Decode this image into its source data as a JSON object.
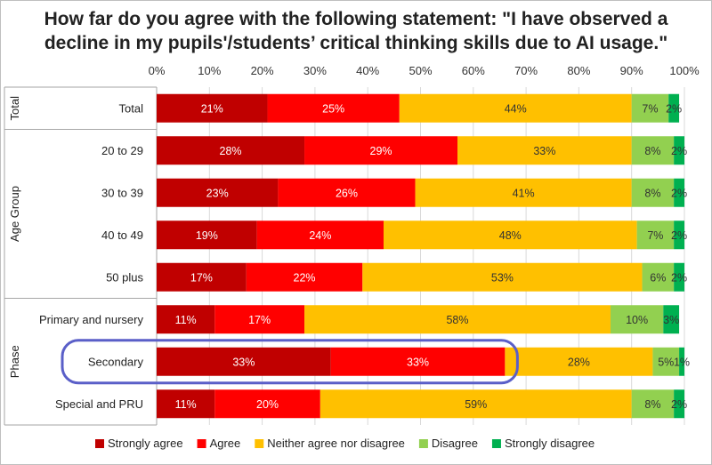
{
  "chart_data": {
    "type": "bar",
    "orientation": "horizontal",
    "stacked": true,
    "title_lines": [
      "How far do you agree with the following statement: \"I have observed a",
      "decline in my pupils'/students’ critical thinking skills due to AI usage.\""
    ],
    "xlim": [
      0,
      100
    ],
    "x_ticks": [
      "0%",
      "10%",
      "20%",
      "30%",
      "40%",
      "50%",
      "60%",
      "70%",
      "80%",
      "90%",
      "100%"
    ],
    "grid": true,
    "legend_position": "bottom",
    "groups": [
      {
        "label": "Total",
        "rows": [
          "Total"
        ]
      },
      {
        "label": "Age Group",
        "rows": [
          "20 to 29",
          "30 to 39",
          "40 to 49",
          "50 plus"
        ]
      },
      {
        "label": "Phase",
        "rows": [
          "Primary and nursery",
          "Secondary",
          "Special and PRU"
        ]
      }
    ],
    "categories": [
      "Total",
      "20 to 29",
      "30 to 39",
      "40 to 49",
      "50 plus",
      "Primary and nursery",
      "Secondary",
      "Special and PRU"
    ],
    "series": [
      {
        "name": "Strongly agree",
        "color": "#c00000",
        "label_color": "#ffffff",
        "values": [
          21,
          28,
          23,
          19,
          17,
          11,
          33,
          11
        ],
        "labels": [
          "21%",
          "28%",
          "23%",
          "19%",
          "17%",
          "11%",
          "33%",
          "11%"
        ]
      },
      {
        "name": "Agree",
        "color": "#ff0000",
        "label_color": "#ffffff",
        "values": [
          25,
          29,
          26,
          24,
          22,
          17,
          33,
          20
        ],
        "labels": [
          "25%",
          "29%",
          "26%",
          "24%",
          "22%",
          "17%",
          "33%",
          "20%"
        ]
      },
      {
        "name": "Neither agree nor disagree",
        "color": "#ffc000",
        "label_color": "#333333",
        "values": [
          44,
          33,
          41,
          48,
          53,
          58,
          28,
          59
        ],
        "labels": [
          "44%",
          "33%",
          "41%",
          "48%",
          "53%",
          "58%",
          "28%",
          "59%"
        ]
      },
      {
        "name": "Disagree",
        "color": "#92d050",
        "label_color": "#333333",
        "values": [
          7,
          8,
          8,
          7,
          6,
          10,
          5,
          8
        ],
        "labels": [
          "7%",
          "8%",
          "8%",
          "7%",
          "6%",
          "10%",
          "5%",
          "8%"
        ]
      },
      {
        "name": "Strongly disagree",
        "color": "#00b050",
        "label_color": "#333333",
        "values": [
          2,
          2,
          2,
          2,
          2,
          3,
          1,
          2
        ],
        "labels": [
          "2%",
          "2%",
          "2%",
          "2%",
          "2%",
          "3%",
          "1%",
          "2%"
        ]
      }
    ],
    "highlight": {
      "category": "Secondary",
      "color": "#5a5fc8"
    }
  }
}
